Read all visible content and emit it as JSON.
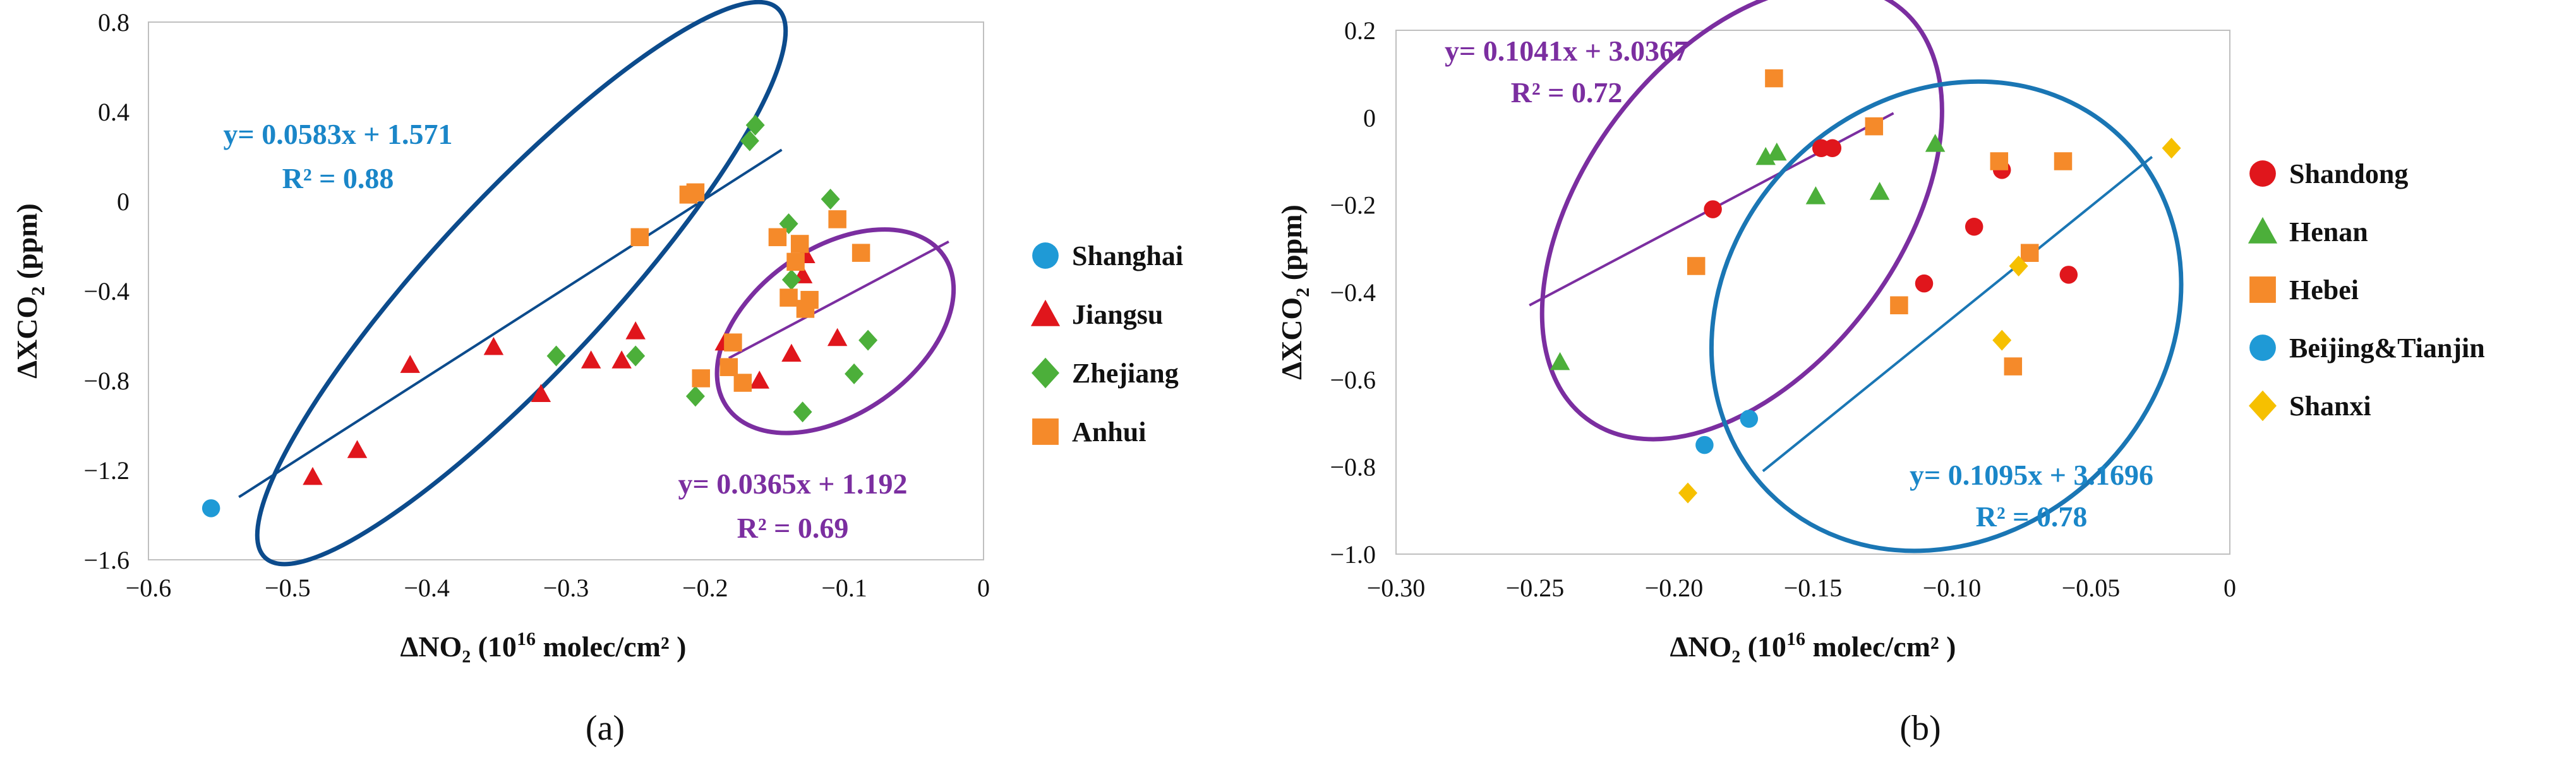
{
  "colors": {
    "shanghai": "#1f9ad6",
    "jiangsu": "#e0161c",
    "zhejiang": "#4caf3a",
    "anhui": "#f58a2a",
    "shandong": "#e0161c",
    "henan": "#4caf3a",
    "hebei": "#f58a2a",
    "beijing_tianjin": "#1f9ad6",
    "shanxi": "#f6c000",
    "fit_blue": "#0c4b8c",
    "fit_purple": "#7b2ea0",
    "fit_cyan": "#1a76b4",
    "eq_blue": "#1a86c8",
    "eq_purple": "#7b2ea0"
  },
  "chart_data": [
    {
      "panel_label": "(a)",
      "type": "scatter",
      "xlabel_main": "ΔNO₂ (10",
      "xlabel_sup": "16",
      "xlabel_tail": " molec/cm² )",
      "ylabel_main": "ΔXCO",
      "ylabel_sub": "2",
      "ylabel_tail": " (ppm)",
      "xlim": [
        -0.6,
        0
      ],
      "ylim": [
        -1.6,
        0.8
      ],
      "xticks": [
        -0.6,
        -0.5,
        -0.4,
        -0.3,
        -0.2,
        -0.1,
        0
      ],
      "xtick_labels": [
        "−0.6",
        "−0.5",
        "−0.4",
        "−0.3",
        "−0.2",
        "−0.1",
        "0"
      ],
      "yticks": [
        -1.6,
        -1.2,
        -0.8,
        -0.4,
        0,
        0.4,
        0.8
      ],
      "ytick_labels": [
        "−1.6",
        "−1.2",
        "−0.8",
        "−0.4",
        "0",
        "0.4",
        "0.8"
      ],
      "legend_position": "right",
      "series": [
        {
          "name": "Shanghai",
          "marker": "circle",
          "color_key": "shanghai",
          "x": [
            -0.555
          ],
          "y": [
            -1.37
          ]
        },
        {
          "name": "Jiangsu",
          "marker": "triangle",
          "color_key": "jiangsu",
          "x": [
            -0.482,
            -0.45,
            -0.412,
            -0.352,
            -0.318,
            -0.282,
            -0.26,
            -0.25,
            -0.186,
            -0.161,
            -0.138,
            -0.13,
            -0.128,
            -0.105
          ],
          "y": [
            -1.23,
            -1.11,
            -0.73,
            -0.65,
            -0.86,
            -0.71,
            -0.71,
            -0.58,
            -0.63,
            -0.8,
            -0.68,
            -0.33,
            -0.24,
            -0.61
          ]
        },
        {
          "name": "Zhejiang",
          "marker": "diamond",
          "color_key": "zhejiang",
          "x": [
            -0.307,
            -0.25,
            -0.207,
            -0.168,
            -0.164,
            -0.14,
            -0.138,
            -0.13,
            -0.11,
            -0.093,
            -0.083
          ],
          "y": [
            -0.69,
            -0.69,
            -0.87,
            0.27,
            0.34,
            -0.1,
            -0.35,
            -0.94,
            0.01,
            -0.77,
            -0.62
          ]
        },
        {
          "name": "Anhui",
          "marker": "square",
          "color_key": "anhui",
          "x": [
            -0.247,
            -0.212,
            -0.207,
            -0.203,
            -0.183,
            -0.18,
            -0.173,
            -0.148,
            -0.14,
            -0.135,
            -0.132,
            -0.128,
            -0.125,
            -0.105,
            -0.088
          ],
          "y": [
            -0.16,
            0.03,
            0.04,
            -0.79,
            -0.74,
            -0.63,
            -0.81,
            -0.16,
            -0.43,
            -0.27,
            -0.19,
            -0.48,
            -0.44,
            -0.08,
            -0.23
          ]
        }
      ],
      "fits": [
        {
          "label": "y= 0.0583x + 1.571",
          "r2": "R² = 0.88",
          "x": [
            -0.535,
            -0.145
          ],
          "y": [
            -1.32,
            0.23
          ],
          "ellipse": {
            "cx": -0.332,
            "cy": -0.365,
            "rx": 0.27,
            "ry": 0.39,
            "angle": -47
          },
          "line_color_key": "fit_blue",
          "eq_color_key": "eq_blue"
        },
        {
          "label": "y= 0.0365x + 1.192",
          "r2": "R² = 0.69",
          "x": [
            -0.183,
            -0.025
          ],
          "y": [
            -0.7,
            -0.18
          ],
          "ellipse": {
            "cx": -0.1065,
            "cy": -0.58,
            "rx": 0.095,
            "ry": 0.37,
            "angle": -35
          },
          "line_color_key": "fit_purple",
          "eq_color_key": "eq_purple"
        }
      ]
    },
    {
      "panel_label": "(b)",
      "type": "scatter",
      "xlabel_main": "ΔNO₂ (10",
      "xlabel_sup": "16",
      "xlabel_tail": " molec/cm² )",
      "ylabel_main": "ΔXCO",
      "ylabel_sub": "2",
      "ylabel_tail": " (ppm)",
      "xlim": [
        -0.3,
        0
      ],
      "ylim": [
        -1.0,
        0.2
      ],
      "xticks": [
        -0.3,
        -0.25,
        -0.2,
        -0.15,
        -0.1,
        -0.05,
        0
      ],
      "xtick_labels": [
        "−0.30",
        "−0.25",
        "−0.20",
        "−0.15",
        "−0.10",
        "−0.05",
        "0"
      ],
      "yticks": [
        -1.0,
        -0.8,
        -0.6,
        -0.4,
        -0.2,
        0,
        0.2
      ],
      "ytick_labels": [
        "−1.0",
        "−0.8",
        "−0.6",
        "−0.4",
        "−0.2",
        "0",
        "0.2"
      ],
      "legend_position": "right",
      "series": [
        {
          "name": "Shandong",
          "marker": "circle",
          "color_key": "shandong",
          "x": [
            -0.186,
            -0.147,
            -0.143,
            -0.11,
            -0.092,
            -0.082,
            -0.058
          ],
          "y": [
            -0.21,
            -0.07,
            -0.07,
            -0.38,
            -0.25,
            -0.12,
            -0.36
          ]
        },
        {
          "name": "Henan",
          "marker": "triangle",
          "color_key": "henan",
          "x": [
            -0.241,
            -0.167,
            -0.163,
            -0.149,
            -0.126,
            -0.106
          ],
          "y": [
            -0.56,
            -0.09,
            -0.08,
            -0.18,
            -0.17,
            -0.06
          ]
        },
        {
          "name": "Hebei",
          "marker": "square",
          "color_key": "hebei",
          "x": [
            -0.192,
            -0.164,
            -0.128,
            -0.119,
            -0.083,
            -0.078,
            -0.072,
            -0.06
          ],
          "y": [
            -0.34,
            0.09,
            -0.02,
            -0.43,
            -0.1,
            -0.57,
            -0.31,
            -0.1
          ]
        },
        {
          "name": "Beijing&Tianjin",
          "marker": "circle",
          "color_key": "beijing_tianjin",
          "x": [
            -0.189,
            -0.173
          ],
          "y": [
            -0.75,
            -0.69
          ]
        },
        {
          "name": "Shanxi",
          "marker": "diamond",
          "color_key": "shanxi",
          "x": [
            -0.195,
            -0.082,
            -0.076,
            -0.021
          ],
          "y": [
            -0.86,
            -0.51,
            -0.34,
            -0.07
          ]
        }
      ],
      "fits": [
        {
          "label": "y= 0.1041x + 3.0367",
          "r2": "R² = 0.72",
          "x": [
            -0.252,
            -0.121
          ],
          "y": [
            -0.43,
            0.01
          ],
          "ellipse": {
            "cx": -0.1755,
            "cy": -0.217,
            "rx": 0.093,
            "ry": 0.36,
            "angle": -53
          },
          "line_color_key": "fit_purple",
          "eq_color_key": "eq_purple"
        },
        {
          "label": "y= 0.1095x + 3.1696",
          "r2": "R² = 0.78",
          "x": [
            -0.168,
            -0.028
          ],
          "y": [
            -0.81,
            -0.09
          ],
          "ellipse": {
            "cx": -0.102,
            "cy": -0.455,
            "rx": 0.09,
            "ry": 0.5,
            "angle": -45
          },
          "line_color_key": "fit_cyan",
          "eq_color_key": "eq_blue"
        }
      ]
    }
  ]
}
